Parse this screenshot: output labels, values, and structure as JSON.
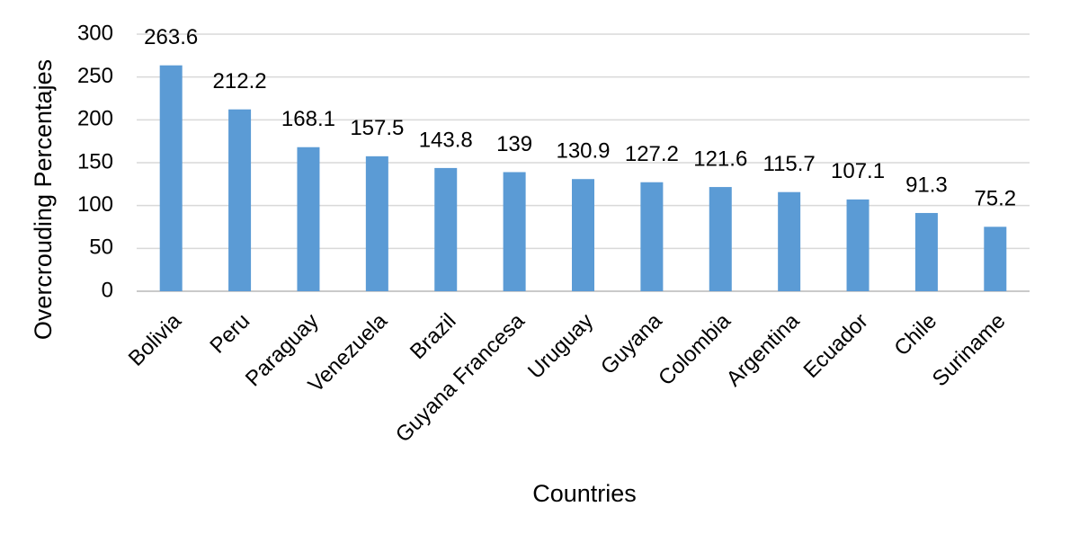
{
  "chart_data": {
    "type": "bar",
    "x_label": "Countries",
    "y_label": "Overcrouding Percentajes",
    "categories": [
      "Bolivia",
      "Peru",
      "Paraguay",
      "Venezuela",
      "Brazil",
      "Guyana Francesa",
      "Uruguay",
      "Guyana",
      "Colombia",
      "Argentina",
      "Ecuador",
      "Chile",
      "Suriname"
    ],
    "values": [
      263.6,
      212.2,
      168.1,
      157.5,
      143.8,
      139,
      130.9,
      127.2,
      121.6,
      115.7,
      107.1,
      91.3,
      75.2
    ],
    "color": "#5b9bd5",
    "ylim": [
      0,
      300
    ],
    "yticks": [
      0,
      50,
      100,
      150,
      200,
      250,
      300
    ],
    "grid": true
  }
}
